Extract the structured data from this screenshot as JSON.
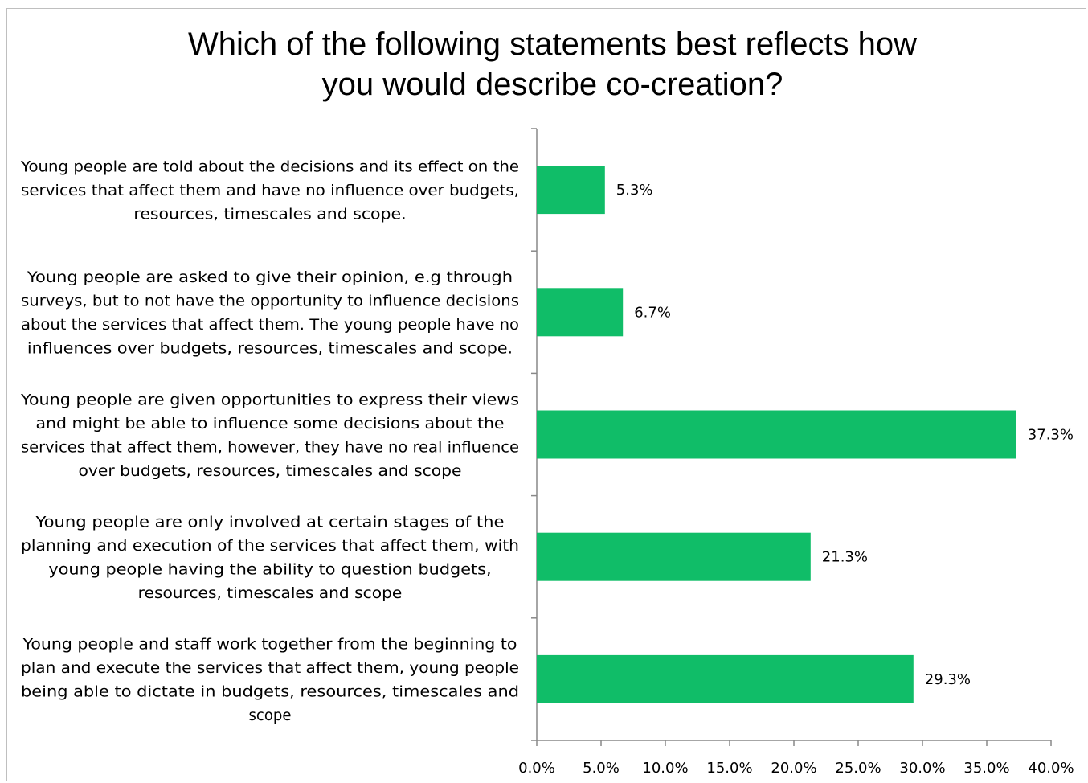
{
  "chart_data": {
    "type": "bar",
    "orientation": "horizontal",
    "title": "Which of the following statements best reflects how you would describe co-creation?",
    "title_lines": [
      "Which of the following statements best reflects how",
      "you would describe co-creation?"
    ],
    "categories": [
      "Young people are told about the decisions and its effect on the services that affect them and have no influence over budgets, resources, timescales and scope.",
      "Young people are asked to give their opinion, e.g through surveys, but to not have the opportunity to influence decisions about the services that affect them. The young people have no influences over budgets, resources, timescales and scope.",
      "Young people are given opportunities to express their views and might be able to influence some decisions about the services that affect them, however, they have no real influence over budgets, resources, timescales and scope",
      "Young people are only involved at certain stages of the planning and execution of the services that affect them, with young people having the ability to question budgets, resources, timescales and scope",
      "Young people and staff work together from the beginning to plan and execute the services that affect them, young people being able to dictate in budgets, resources, timescales and scope"
    ],
    "category_lines": [
      [
        "Young people are told about the decisions and its effect on the",
        "services that affect them and have no influence over budgets,",
        "resources, timescales and scope."
      ],
      [
        "Young people are asked to give their opinion, e.g through",
        "surveys, but to not have the opportunity to influence decisions",
        "about the services that affect them. The young people have no",
        "influences over budgets, resources, timescales and scope."
      ],
      [
        "Young people are given opportunities to express their views",
        "and might be able to influence some decisions about the",
        "services that affect them, however, they have no real influence",
        "over budgets, resources, timescales and scope"
      ],
      [
        "Young people are only involved at certain stages of the",
        "planning and execution of the services that affect them, with",
        "young people having the ability to question budgets,",
        "resources, timescales and scope"
      ],
      [
        "Young people and staff work together from the beginning to",
        "plan and execute the services that affect them, young people",
        "being able to dictate in budgets, resources, timescales and",
        "scope"
      ]
    ],
    "values": [
      5.3,
      6.7,
      37.3,
      21.3,
      29.3
    ],
    "data_labels": [
      "5.3%",
      "6.7%",
      "37.3%",
      "21.3%",
      "29.3%"
    ],
    "xlim": [
      0,
      40
    ],
    "x_ticks": [
      0,
      5,
      10,
      15,
      20,
      25,
      30,
      35,
      40
    ],
    "x_tick_labels": [
      "0.0%",
      "5.0%",
      "10.0%",
      "15.0%",
      "20.0%",
      "25.0%",
      "30.0%",
      "35.0%",
      "40.0%"
    ],
    "xlabel": "",
    "ylabel": "",
    "bar_color": "#10bd68",
    "axis_color": "#888888",
    "grid": false,
    "legend": "none"
  }
}
